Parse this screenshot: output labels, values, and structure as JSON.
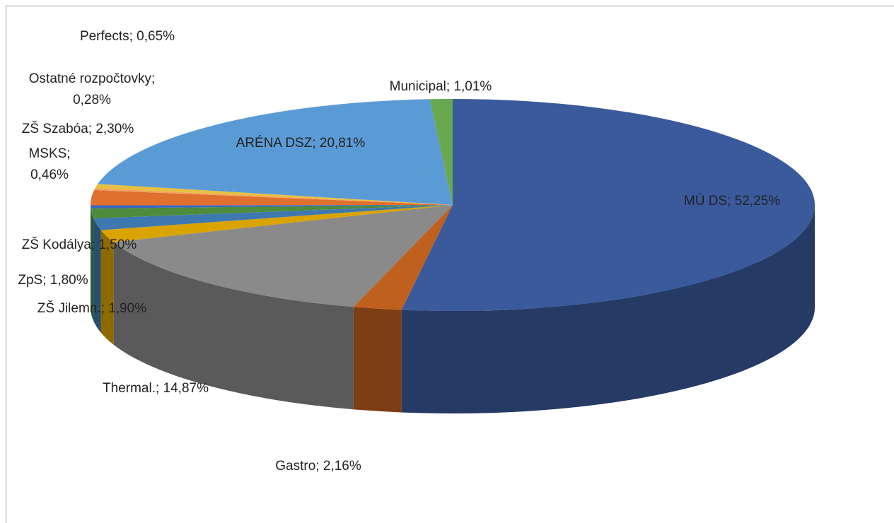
{
  "chart_data": {
    "type": "pie",
    "labels": [
      "MÚ DS; 52,25%",
      "Gastro; 2,16%",
      "Thermal.; 14,87%",
      "ZŠ Jilemn.; 1,90%",
      "ZpS; 1,80%",
      "ZŠ Kodálya; 1,50%",
      "MSKS;\n0,46%",
      "ZŠ Szabóa; 2,30%",
      "Ostatné rozpočtovky;\n0,28%",
      "Perfects; 0,65%",
      "ARÉNA DSZ; 20,81%",
      "Municipal; 1,01%"
    ],
    "values": [
      52.25,
      2.16,
      14.87,
      1.9,
      1.8,
      1.5,
      0.46,
      2.3,
      0.28,
      0.65,
      20.81,
      1.01
    ],
    "colors": [
      "#3a5a9c",
      "#c0601f",
      "#8a8a8a",
      "#d9a300",
      "#3e78b0",
      "#4c8c3c",
      "#3a64c0",
      "#e0702e",
      "#f2a060",
      "#e8c040",
      "#5b9bd5",
      "#6aa84f"
    ]
  }
}
